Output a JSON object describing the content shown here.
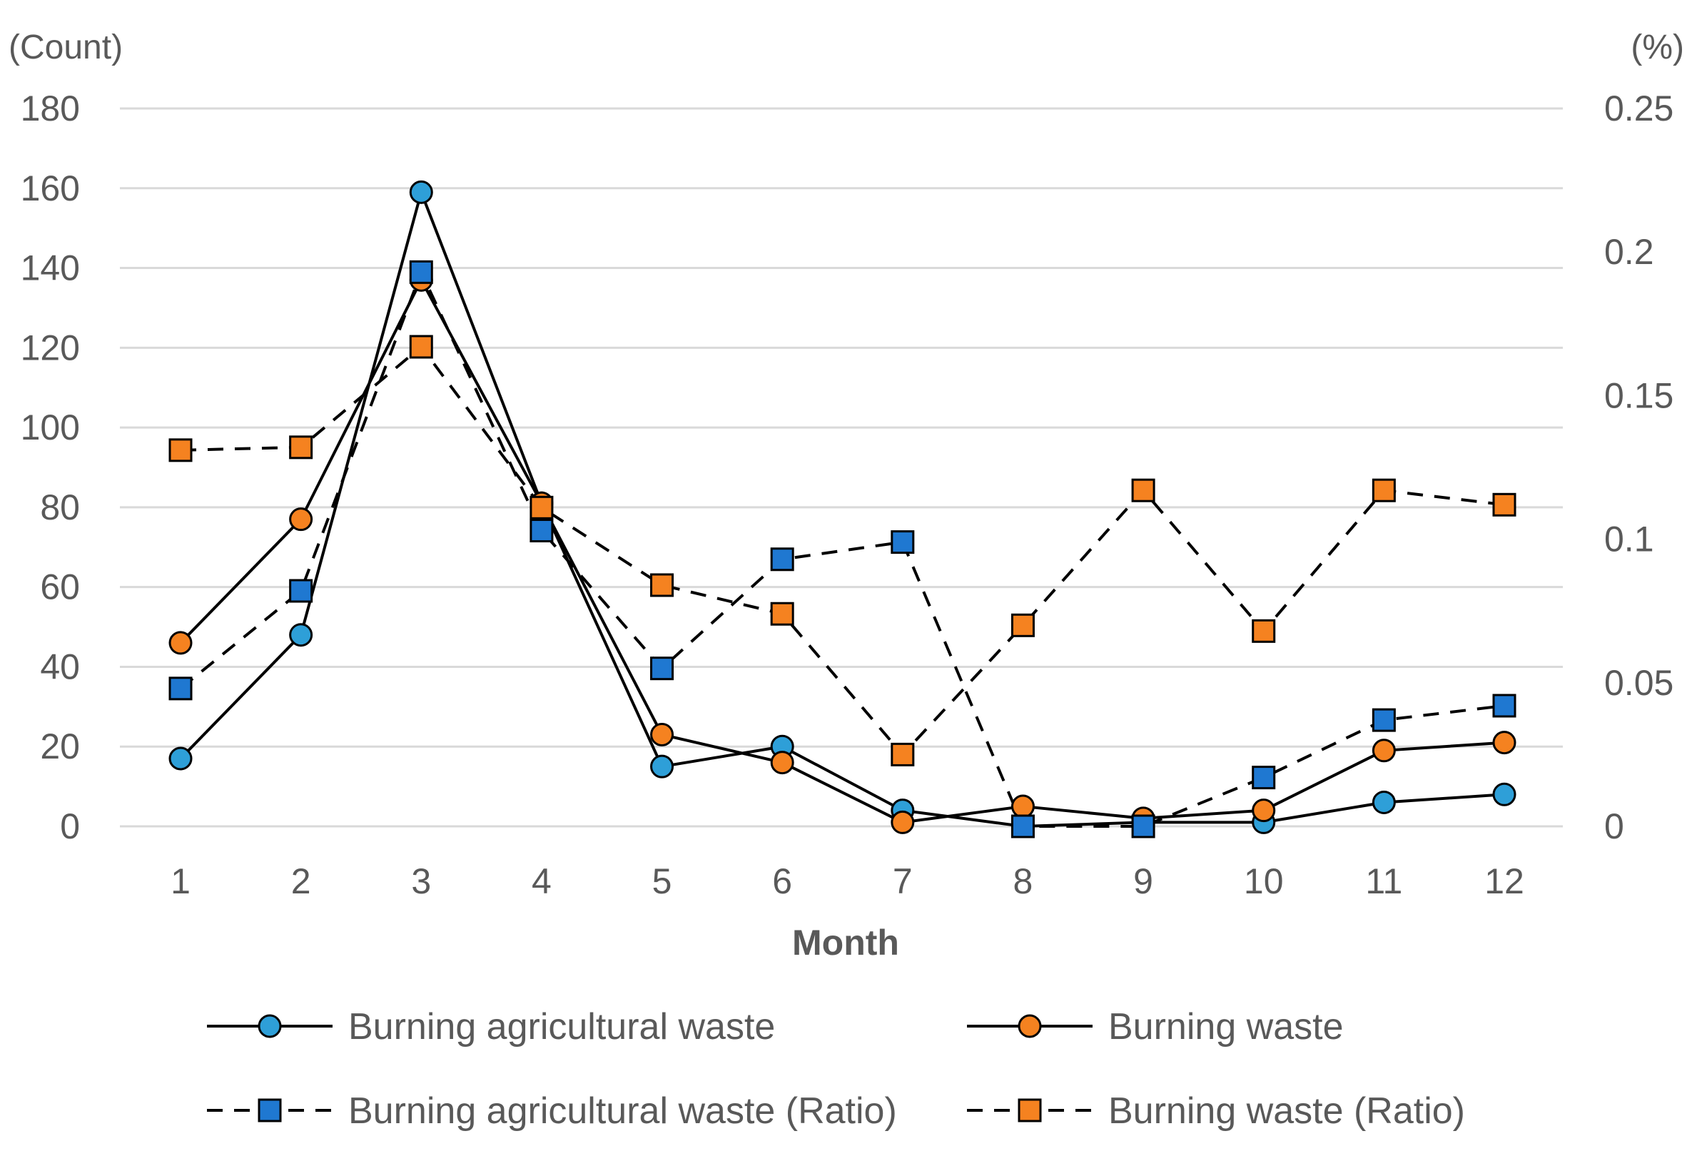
{
  "chart_data": {
    "type": "line",
    "xlabel": "Month",
    "ylabel_left": "(Count)",
    "ylabel_right": "(%)",
    "categories": [
      "1",
      "2",
      "3",
      "4",
      "5",
      "6",
      "7",
      "8",
      "9",
      "10",
      "11",
      "12"
    ],
    "y_left": {
      "range": [
        0,
        180
      ],
      "ticks": [
        "0",
        "20",
        "40",
        "60",
        "80",
        "100",
        "120",
        "140",
        "160",
        "180"
      ]
    },
    "y_right": {
      "range": [
        0,
        0.25
      ],
      "ticks": [
        "0",
        "0.05",
        "0.1",
        "0.15",
        "0.2",
        "0.25"
      ]
    },
    "grid": true,
    "legend_position": "bottom",
    "series": [
      {
        "name": "Burning agricultural waste",
        "axis": "left",
        "line": "solid",
        "marker": "circle",
        "color": "#2E9FD8",
        "values": [
          17,
          48,
          159,
          81,
          15,
          20,
          4,
          0,
          1,
          1,
          6,
          8
        ]
      },
      {
        "name": "Burning waste",
        "axis": "left",
        "line": "solid",
        "marker": "circle",
        "color": "#F58220",
        "values": [
          46,
          77,
          137,
          81,
          23,
          16,
          1,
          5,
          2,
          4,
          19,
          21
        ]
      },
      {
        "name": "Burning agricultural waste (Ratio)",
        "axis": "right",
        "line": "dashed",
        "marker": "square",
        "color": "#1F78D1",
        "values": [
          0.048,
          0.082,
          0.193,
          0.103,
          0.055,
          0.093,
          0.099,
          0,
          0,
          0.017,
          0.037,
          0.042
        ]
      },
      {
        "name": "Burning waste (Ratio)",
        "axis": "right",
        "line": "dashed",
        "marker": "square",
        "color": "#F58220",
        "values": [
          0.131,
          0.132,
          0.167,
          0.111,
          0.084,
          0.074,
          0.025,
          0.07,
          0.117,
          0.068,
          0.117,
          0.112
        ]
      }
    ]
  }
}
